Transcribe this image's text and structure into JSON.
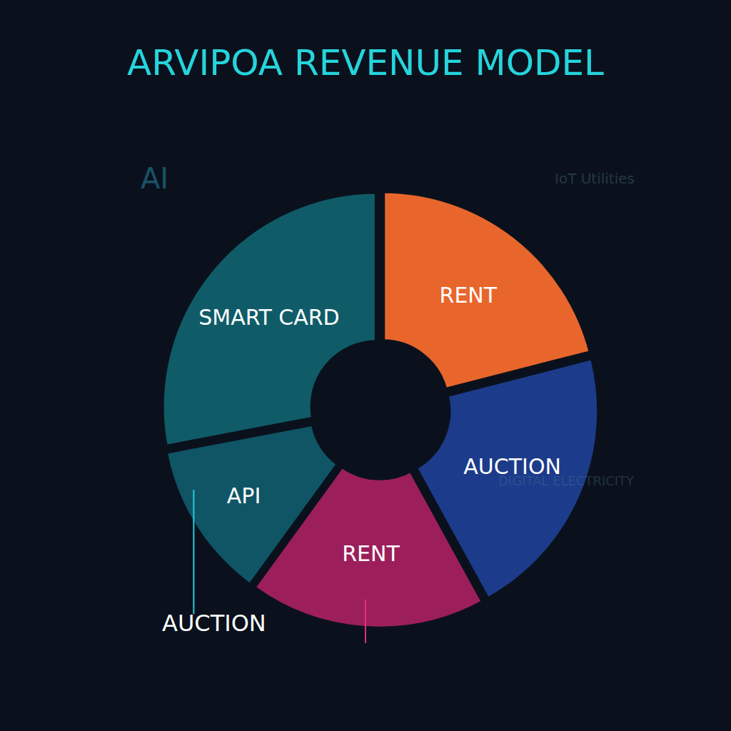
{
  "chart_data": {
    "type": "pie",
    "title": "ARVIPOA REVENUE MODEL",
    "categories": [
      "RENT",
      "AUCTION",
      "RENT",
      "API",
      "SMART CARD"
    ],
    "values": [
      21,
      21,
      18,
      12,
      28
    ],
    "colors": [
      "#e8662c",
      "#1c3b8a",
      "#9c1f5c",
      "#0f5566",
      "#0f5c68"
    ],
    "annotations": [
      "AUCTION"
    ],
    "background_labels": [
      "AI",
      "IoT Utilities",
      "DIGITAL ELECTRICITY"
    ]
  }
}
